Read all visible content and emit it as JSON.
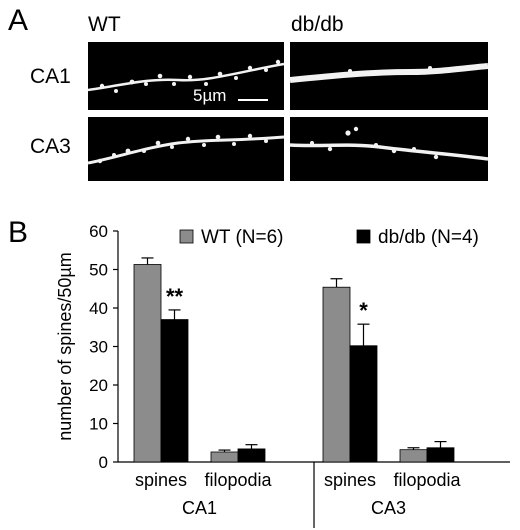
{
  "panel_a": {
    "letter": "A",
    "col_labels": [
      "WT",
      "db/db"
    ],
    "row_labels": [
      "CA1",
      "CA3"
    ],
    "scale_bar_label": "5µm"
  },
  "panel_b": {
    "letter": "B"
  },
  "colors": {
    "wt": "#8c8c8c",
    "dbdb": "#000000",
    "micrograph_bg": "#000000",
    "dendrite": "#f2f2f2"
  },
  "chart_data": {
    "type": "bar",
    "ylabel": "number of spines/50µm",
    "ylim": [
      0,
      60
    ],
    "yticks": [
      "0",
      "10",
      "20",
      "30",
      "40",
      "50",
      "60"
    ],
    "groups": [
      "CA1",
      "CA3"
    ],
    "categories": [
      "spines",
      "filopodia",
      "spines",
      "filopodia"
    ],
    "series": [
      {
        "name": "WT (N=6)",
        "values": [
          51.3,
          2.6,
          45.4,
          3.2
        ],
        "errors": [
          1.7,
          0.5,
          2.2,
          0.5
        ]
      },
      {
        "name": "db/db (N=4)",
        "values": [
          37.0,
          3.4,
          30.2,
          3.7
        ],
        "errors": [
          2.5,
          1.1,
          5.6,
          1.6
        ]
      }
    ],
    "annotations": [
      "**",
      "",
      "*",
      ""
    ],
    "legend_position": "top"
  }
}
